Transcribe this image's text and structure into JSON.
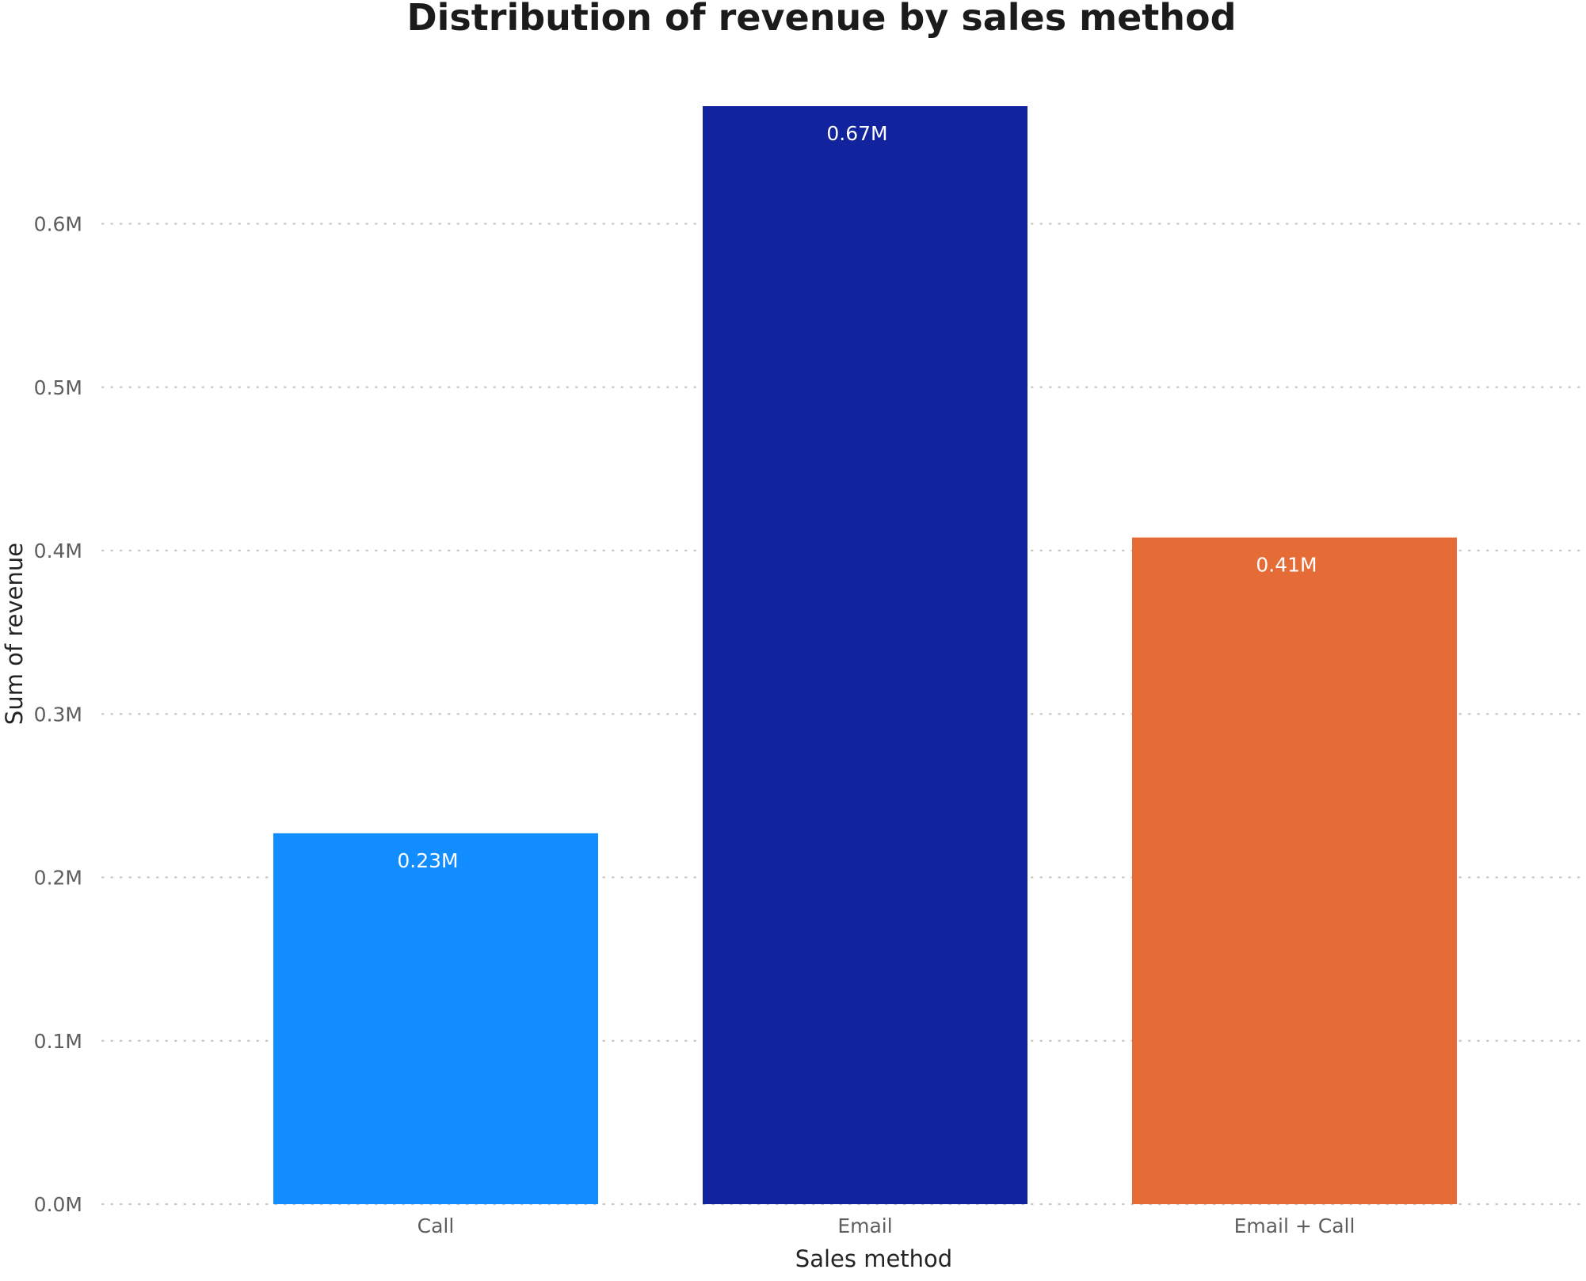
{
  "chart_data": {
    "type": "bar",
    "title": "Distribution of revenue by sales method",
    "xlabel": "Sales method",
    "ylabel": "Sum of revenue",
    "categories": [
      "Call",
      "Email",
      "Email + Call"
    ],
    "values": [
      0.227,
      0.672,
      0.408
    ],
    "value_unit": "M",
    "data_labels": [
      "0.23M",
      "0.67M",
      "0.41M"
    ],
    "colors": [
      "#118DFF",
      "#12239E",
      "#E66C37"
    ],
    "ylim": [
      0,
      0.672
    ],
    "yticks": [
      0,
      0.1,
      0.2,
      0.3,
      0.4,
      0.5,
      0.6
    ],
    "ytick_labels": [
      "0.0M",
      "0.1M",
      "0.2M",
      "0.3M",
      "0.4M",
      "0.5M",
      "0.6M"
    ],
    "grid": true,
    "legend": false
  }
}
